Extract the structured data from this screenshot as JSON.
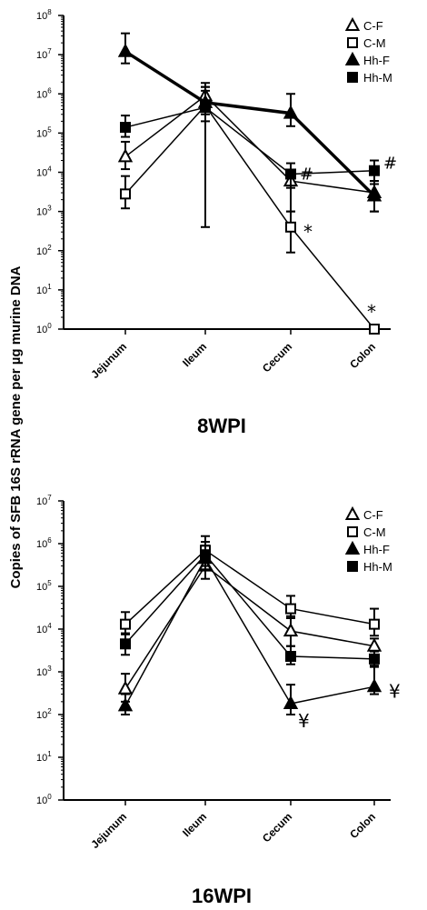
{
  "y_axis_label": "Copies of SFB 16S rRNA gene per µg murine DNA",
  "chart_data": [
    {
      "type": "line",
      "title": "8WPI",
      "categories": [
        "Jejunum",
        "Ileum",
        "Cecum",
        "Colon"
      ],
      "ylog": true,
      "ylim_exp": [
        0,
        8
      ],
      "ytick_base": "10",
      "ytick_exps": [
        "0",
        "1",
        "2",
        "3",
        "4",
        "5",
        "6",
        "7",
        "8"
      ],
      "legend_position": "top-right",
      "series": [
        {
          "name": "C-F",
          "marker": "triangle-open",
          "line_width": 1.5,
          "values": [
            25000,
            900000,
            6000,
            3000
          ],
          "err_low": [
            12000,
            400000,
            1000,
            1000
          ],
          "err_high": [
            60000,
            1500000,
            10000,
            6000
          ]
        },
        {
          "name": "C-M",
          "marker": "square-open",
          "line_width": 1.5,
          "values": [
            2800,
            500000,
            400,
            1
          ],
          "err_low": [
            1200,
            200000,
            90,
            1
          ],
          "err_high": [
            8000,
            1200000,
            1000,
            1
          ]
        },
        {
          "name": "Hh-F",
          "marker": "triangle-filled",
          "line_width": 3.5,
          "values": [
            12000000,
            600000,
            320000,
            2500
          ],
          "err_low": [
            6000000,
            300000,
            150000,
            1000
          ],
          "err_high": [
            35000000,
            1500000,
            1000000,
            6000
          ]
        },
        {
          "name": "Hh-M",
          "marker": "square-filled",
          "line_width": 1.5,
          "values": [
            140000,
            450000,
            9000,
            11000
          ],
          "err_low": [
            80000,
            400,
            4000,
            5000
          ],
          "err_high": [
            280000,
            1900000,
            17000,
            20000
          ]
        }
      ],
      "annotations": [
        {
          "text": "*",
          "series": "C-M",
          "category": "Cecum"
        },
        {
          "text": "*",
          "series": "C-M",
          "category": "Colon"
        },
        {
          "text": "#",
          "series": "Hh-M",
          "category": "Cecum"
        },
        {
          "text": "#",
          "series": "Hh-M",
          "category": "Colon"
        }
      ]
    },
    {
      "type": "line",
      "title": "16WPI",
      "categories": [
        "Jejunum",
        "Ileum",
        "Cecum",
        "Colon"
      ],
      "ylog": true,
      "ylim_exp": [
        0,
        7
      ],
      "ytick_base": "10",
      "ytick_exps": [
        "0",
        "1",
        "2",
        "3",
        "4",
        "5",
        "6",
        "7"
      ],
      "legend_position": "top-right",
      "series": [
        {
          "name": "C-F",
          "marker": "triangle-open",
          "line_width": 1.5,
          "values": [
            400,
            300000,
            9000,
            4000
          ],
          "err_low": [
            200,
            150000,
            4000,
            2500
          ],
          "err_high": [
            900,
            600000,
            20000,
            6000
          ]
        },
        {
          "name": "C-M",
          "marker": "square-open",
          "line_width": 1.5,
          "values": [
            13000,
            700000,
            30000,
            13000
          ],
          "err_low": [
            8000,
            400000,
            18000,
            7000
          ],
          "err_high": [
            25000,
            1500000,
            60000,
            30000
          ]
        },
        {
          "name": "Hh-F",
          "marker": "triangle-filled",
          "line_width": 1.5,
          "values": [
            160,
            450000,
            180,
            450
          ],
          "err_low": [
            100,
            250000,
            100,
            300
          ],
          "err_high": [
            300,
            900000,
            500,
            1300
          ]
        },
        {
          "name": "Hh-M",
          "marker": "square-filled",
          "line_width": 1.5,
          "values": [
            4500,
            550000,
            2300,
            2000
          ],
          "err_low": [
            2500,
            300000,
            1500,
            1400
          ],
          "err_high": [
            7500,
            1100000,
            4000,
            3000
          ]
        }
      ],
      "annotations": [
        {
          "text": "¥",
          "series": "Hh-F",
          "category": "Cecum"
        },
        {
          "text": "¥",
          "series": "Hh-F",
          "category": "Colon"
        }
      ]
    }
  ]
}
